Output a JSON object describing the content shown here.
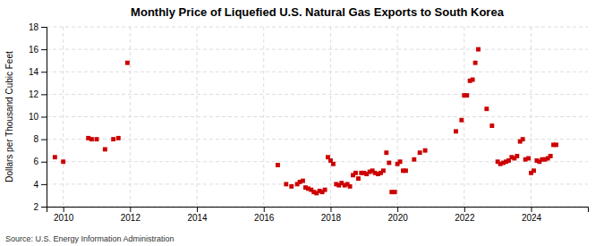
{
  "chart_data": {
    "type": "scatter",
    "title": "Monthly Price of Liquefied U.S. Natural Gas Exports to South Korea",
    "ylabel": "Dollars per Thousand Cubic Feet",
    "annotations": [
      "Source: U.S. Energy Information Administration"
    ],
    "color": "#cc0000",
    "marker": "square",
    "grid": true,
    "xlim": [
      2009.5,
      2025.7
    ],
    "xticks": [
      2010,
      2012,
      2014,
      2016,
      2018,
      2020,
      2022,
      2024
    ],
    "ylim": [
      2,
      18
    ],
    "yticks": [
      2,
      4,
      6,
      8,
      10,
      12,
      14,
      16,
      18
    ],
    "x": [
      2009.75,
      2010.0,
      2010.75,
      2010.85,
      2011.0,
      2011.25,
      2011.5,
      2011.65,
      2011.92,
      2016.42,
      2016.67,
      2016.83,
      2017.0,
      2017.08,
      2017.17,
      2017.25,
      2017.33,
      2017.42,
      2017.5,
      2017.58,
      2017.67,
      2017.75,
      2017.83,
      2017.92,
      2018.0,
      2018.08,
      2018.17,
      2018.25,
      2018.33,
      2018.42,
      2018.5,
      2018.58,
      2018.67,
      2018.75,
      2018.83,
      2018.92,
      2019.0,
      2019.08,
      2019.17,
      2019.25,
      2019.33,
      2019.42,
      2019.5,
      2019.58,
      2019.67,
      2019.75,
      2019.83,
      2019.92,
      2020.0,
      2020.08,
      2020.17,
      2020.25,
      2020.5,
      2020.67,
      2020.83,
      2021.75,
      2021.92,
      2022.0,
      2022.08,
      2022.17,
      2022.25,
      2022.33,
      2022.42,
      2022.67,
      2022.83,
      2023.0,
      2023.08,
      2023.17,
      2023.25,
      2023.33,
      2023.42,
      2023.5,
      2023.58,
      2023.67,
      2023.75,
      2023.83,
      2023.92,
      2024.0,
      2024.08,
      2024.17,
      2024.25,
      2024.33,
      2024.42,
      2024.5,
      2024.58,
      2024.67,
      2024.75
    ],
    "values": [
      6.4,
      6.0,
      8.1,
      8.0,
      8.0,
      7.1,
      8.0,
      8.1,
      14.8,
      5.7,
      4.0,
      3.8,
      4.0,
      4.2,
      4.3,
      3.7,
      3.6,
      3.5,
      3.3,
      3.2,
      3.4,
      3.3,
      3.5,
      6.4,
      6.1,
      5.8,
      4.0,
      3.9,
      4.1,
      3.9,
      4.0,
      3.8,
      4.8,
      5.0,
      4.5,
      5.0,
      5.0,
      4.9,
      5.1,
      5.2,
      5.0,
      4.9,
      5.0,
      5.2,
      6.8,
      5.9,
      3.3,
      3.3,
      5.8,
      6.0,
      5.2,
      5.2,
      6.2,
      6.8,
      7.0,
      8.7,
      9.7,
      11.9,
      11.9,
      13.2,
      13.3,
      14.8,
      16.0,
      10.7,
      9.2,
      6.0,
      5.8,
      5.9,
      6.0,
      6.1,
      6.4,
      6.3,
      6.5,
      7.8,
      8.0,
      6.2,
      6.3,
      5.0,
      5.2,
      6.1,
      6.0,
      6.2,
      6.2,
      6.3,
      6.5,
      7.5,
      7.5
    ]
  }
}
